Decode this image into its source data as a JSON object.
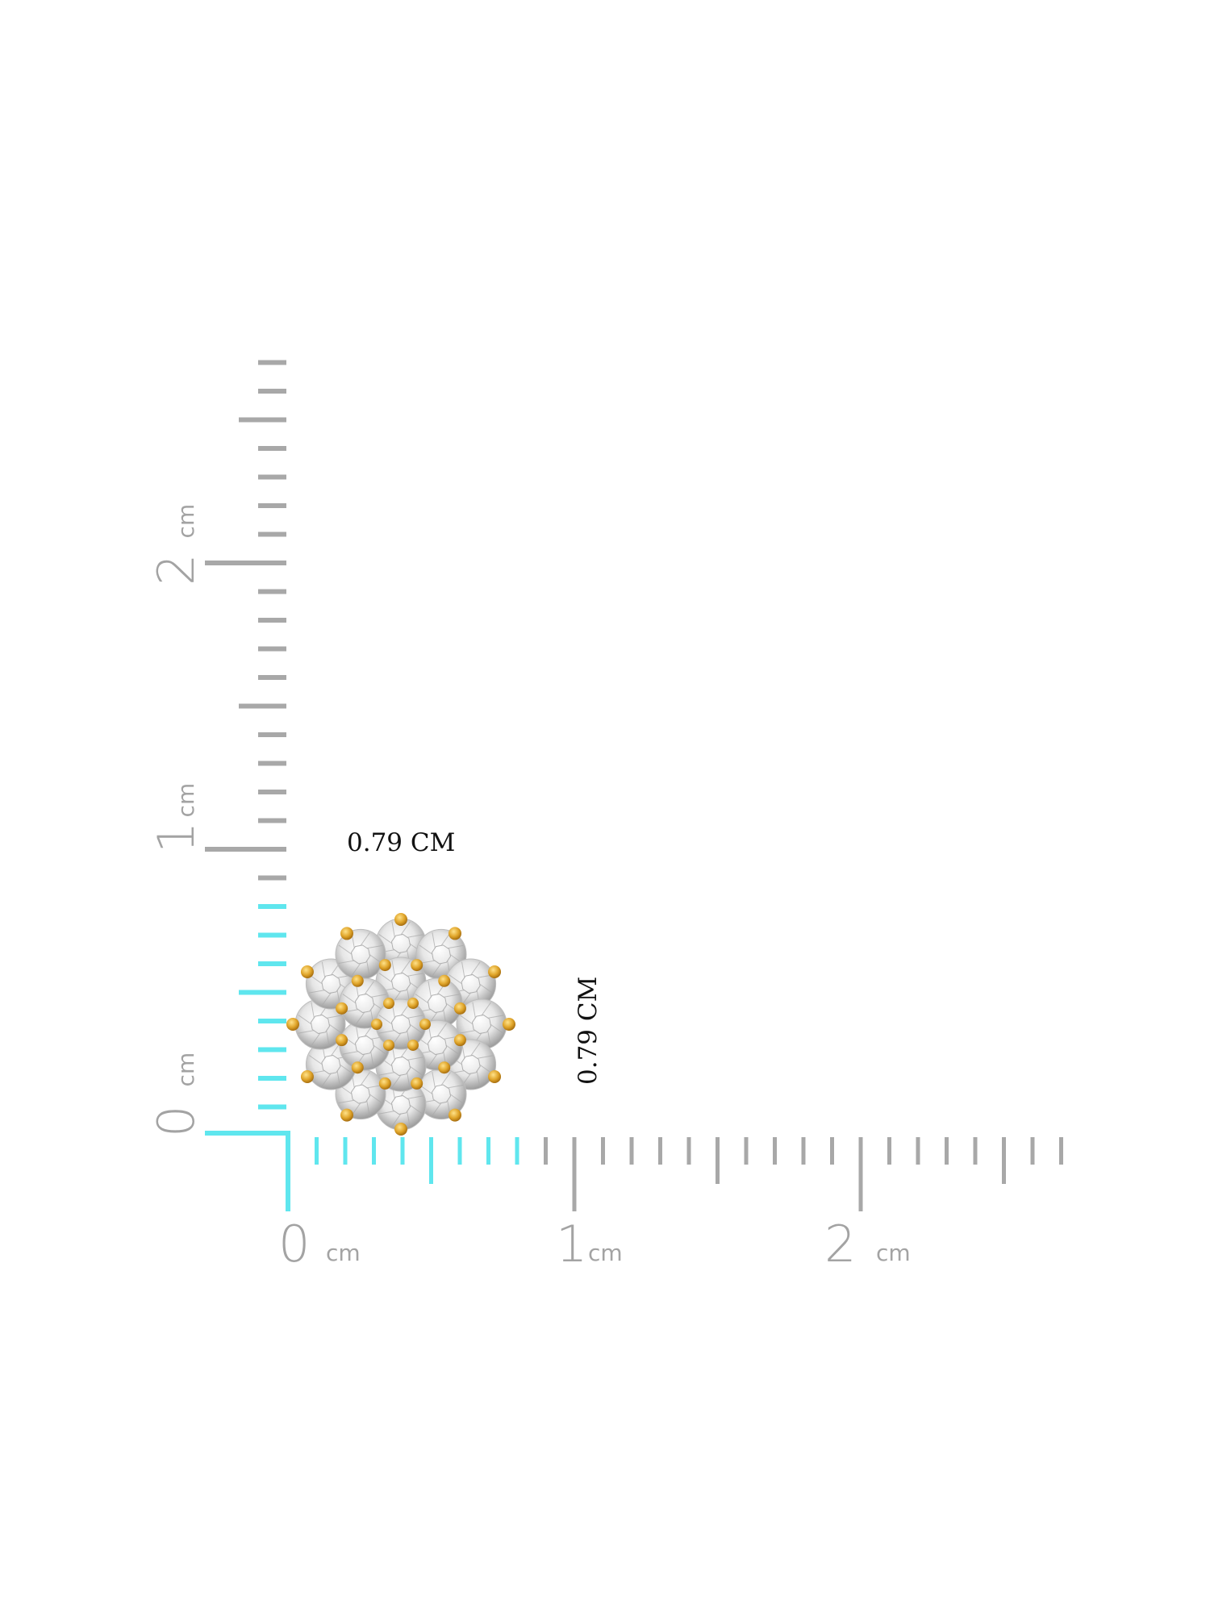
{
  "ruler": {
    "unit_label": "cm",
    "horizontal_labels": [
      "0",
      "1",
      "2"
    ],
    "vertical_labels": [
      "0",
      "1",
      "2"
    ],
    "tick_color": "#a8a8a8",
    "highlight_color": "#5fe6ee"
  },
  "dimensions": {
    "width_label": "0.79 CM",
    "height_label": "0.79 CM",
    "width_cm": 0.79,
    "height_cm": 0.79
  },
  "product": {
    "icon": "flower-cluster-diamond-earring",
    "metal_color": "#e0a52a",
    "stone_color": "#e6e6e6"
  }
}
